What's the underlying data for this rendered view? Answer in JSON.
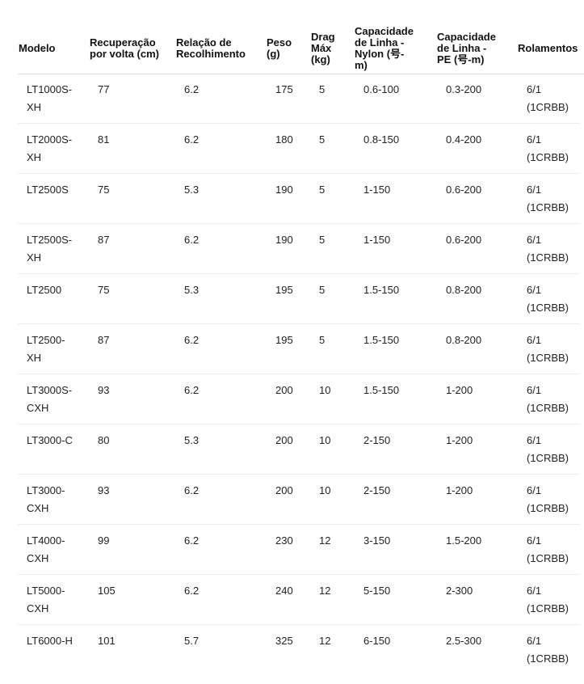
{
  "headers": [
    "Modelo",
    "Recuperação por volta (cm)",
    "Relação de Recolhimento",
    "Peso (g)",
    "Drag Máx (kg)",
    "Capacidade de Linha - Nylon (号-m)",
    "Capacidade de Linha - PE (号-m)",
    "Rolamentos"
  ],
  "rows": [
    [
      "LT1000S-XH",
      "77",
      "6.2",
      "175",
      "5",
      "0.6-100",
      "0.3-200",
      "6/1 (1CRBB)"
    ],
    [
      "LT2000S-XH",
      "81",
      "6.2",
      "180",
      "5",
      "0.8-150",
      "0.4-200",
      "6/1 (1CRBB)"
    ],
    [
      "LT2500S",
      "75",
      "5.3",
      "190",
      "5",
      "1-150",
      "0.6-200",
      "6/1 (1CRBB)"
    ],
    [
      "LT2500S-XH",
      "87",
      "6.2",
      "190",
      "5",
      "1-150",
      "0.6-200",
      "6/1 (1CRBB)"
    ],
    [
      "LT2500",
      "75",
      "5.3",
      "195",
      "5",
      "1.5-150",
      "0.8-200",
      "6/1 (1CRBB)"
    ],
    [
      "LT2500-XH",
      "87",
      "6.2",
      "195",
      "5",
      "1.5-150",
      "0.8-200",
      "6/1 (1CRBB)"
    ],
    [
      "LT3000S-CXH",
      "93",
      "6.2",
      "200",
      "10",
      "1.5-150",
      "1-200",
      "6/1 (1CRBB)"
    ],
    [
      "LT3000-C",
      "80",
      "5.3",
      "200",
      "10",
      "2-150",
      "1-200",
      "6/1 (1CRBB)"
    ],
    [
      "LT3000-CXH",
      "93",
      "6.2",
      "200",
      "10",
      "2-150",
      "1-200",
      "6/1 (1CRBB)"
    ],
    [
      "LT4000-CXH",
      "99",
      "6.2",
      "230",
      "12",
      "3-150",
      "1.5-200",
      "6/1 (1CRBB)"
    ],
    [
      "LT5000-CXH",
      "105",
      "6.2",
      "240",
      "12",
      "5-150",
      "2-300",
      "6/1 (1CRBB)"
    ],
    [
      "LT6000-H",
      "101",
      "5.7",
      "325",
      "12",
      "6-150",
      "2.5-300",
      "6/1 (1CRBB)"
    ]
  ]
}
